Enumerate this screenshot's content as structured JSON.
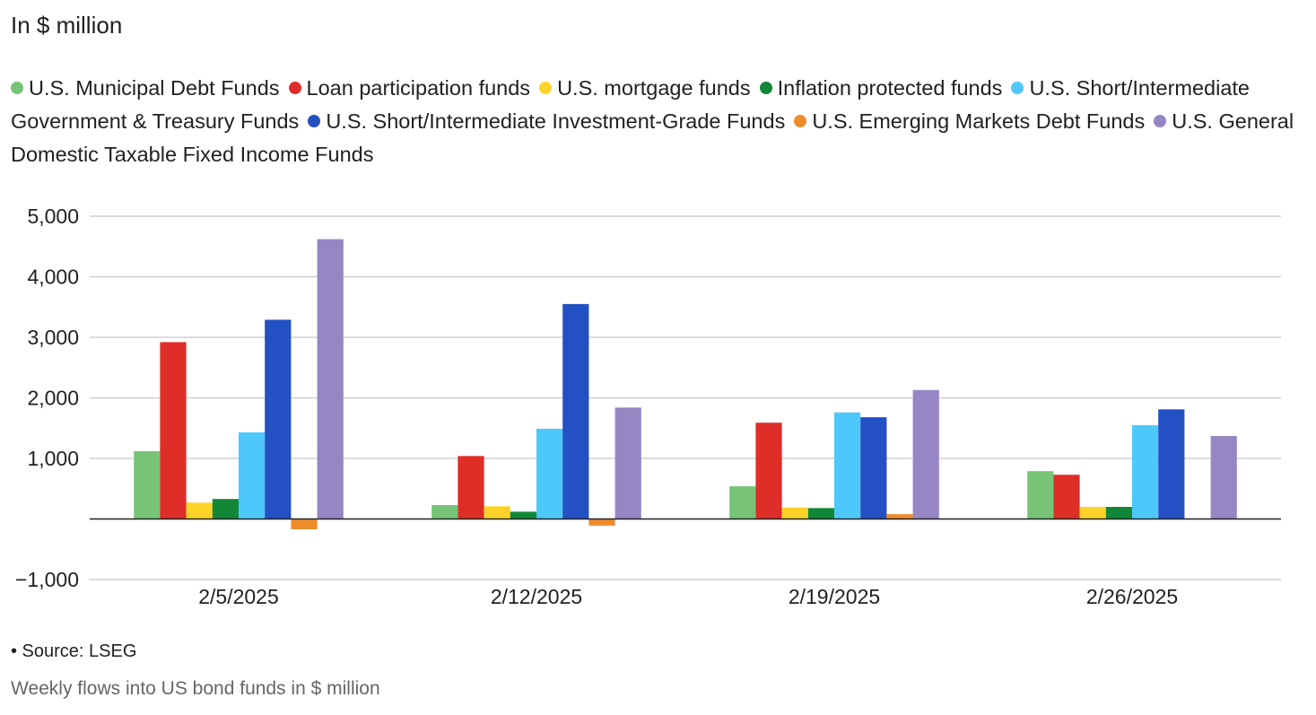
{
  "chart_data": {
    "type": "bar",
    "title": "In $ million",
    "categories": [
      "2/5/2025",
      "2/12/2025",
      "2/19/2025",
      "2/26/2025"
    ],
    "yticks": [
      "5,000",
      "4,000",
      "3,000",
      "2,000",
      "1,000",
      "−1,000"
    ],
    "ylim": [
      -1000,
      5000
    ],
    "grid": true,
    "legend_position": "top",
    "series": [
      {
        "name": "U.S. Municipal Debt Funds",
        "color": "#77c476",
        "values": [
          1120,
          230,
          540,
          790
        ]
      },
      {
        "name": "Loan participation funds",
        "color": "#df2d28",
        "values": [
          2920,
          1040,
          1590,
          730
        ]
      },
      {
        "name": "U.S. mortgage funds",
        "color": "#fdd32a",
        "values": [
          270,
          210,
          190,
          200
        ]
      },
      {
        "name": "Inflation protected funds",
        "color": "#128737",
        "values": [
          330,
          120,
          180,
          200
        ]
      },
      {
        "name": "U.S. Short/Intermediate Government & Treasury Funds",
        "color": "#4ec8fb",
        "values": [
          1430,
          1490,
          1760,
          1550
        ]
      },
      {
        "name": "U.S. Short/Intermediate Investment-Grade Funds",
        "color": "#2350c2",
        "values": [
          3290,
          3550,
          1680,
          1810
        ]
      },
      {
        "name": "U.S. Emerging Markets Debt Funds",
        "color": "#f08b2c",
        "values": [
          -170,
          -110,
          80,
          0
        ]
      },
      {
        "name": "U.S. General Domestic Taxable Fixed Income Funds",
        "color": "#9686c4",
        "values": [
          4620,
          1840,
          2130,
          1370
        ]
      }
    ]
  },
  "footer": {
    "source": "• Source: LSEG",
    "caption": "Weekly flows into US bond funds in $ million"
  }
}
